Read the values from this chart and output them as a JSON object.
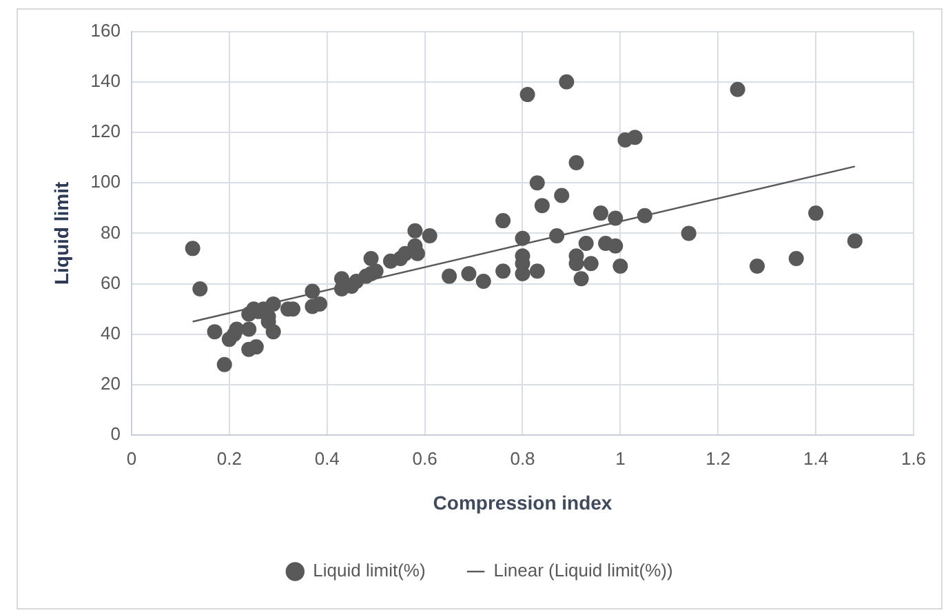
{
  "chart_data": {
    "type": "scatter",
    "xlabel": "Compression index",
    "ylabel": "Liquid limit",
    "xlim": [
      0,
      1.6
    ],
    "xticks": [
      0,
      0.2,
      0.4,
      0.6,
      0.8,
      1,
      1.2,
      1.4,
      1.6
    ],
    "ylim": [
      0,
      160
    ],
    "yticks": [
      0,
      20,
      40,
      60,
      80,
      100,
      120,
      140,
      160
    ],
    "grid": true,
    "legend": "bottom",
    "series": [
      {
        "name": "Liquid limit(%)",
        "marker": "circle",
        "color": "#595959",
        "x": [
          0.125,
          0.14,
          0.17,
          0.19,
          0.2,
          0.21,
          0.215,
          0.24,
          0.24,
          0.24,
          0.255,
          0.25,
          0.26,
          0.27,
          0.28,
          0.28,
          0.29,
          0.29,
          0.32,
          0.33,
          0.37,
          0.37,
          0.385,
          0.43,
          0.43,
          0.45,
          0.46,
          0.48,
          0.49,
          0.49,
          0.5,
          0.53,
          0.55,
          0.56,
          0.58,
          0.58,
          0.585,
          0.61,
          0.65,
          0.69,
          0.72,
          0.76,
          0.76,
          0.8,
          0.8,
          0.8,
          0.8,
          0.81,
          0.83,
          0.83,
          0.84,
          0.87,
          0.88,
          0.89,
          0.91,
          0.91,
          0.91,
          0.92,
          0.93,
          0.94,
          0.96,
          0.97,
          0.99,
          0.99,
          1.0,
          1.01,
          1.03,
          1.05,
          1.14,
          1.24,
          1.28,
          1.36,
          1.4,
          1.48
        ],
        "values": [
          74,
          58,
          41,
          28,
          38,
          40,
          42,
          48,
          42,
          34,
          35,
          50,
          49,
          50,
          47,
          45,
          52,
          41,
          50,
          50,
          57,
          51,
          52,
          62,
          58,
          59,
          61,
          63,
          70,
          64,
          65,
          69,
          70,
          72,
          81,
          75,
          72,
          79,
          63,
          64,
          61,
          65,
          85,
          78,
          71,
          68,
          64,
          135,
          65,
          100,
          91,
          79,
          95,
          140,
          108,
          71,
          68,
          62,
          76,
          68,
          88,
          76,
          86,
          75,
          67,
          117,
          118,
          87,
          80,
          137,
          67,
          70,
          88,
          77
        ]
      },
      {
        "name": "Linear (Liquid limit(%))",
        "type": "line",
        "marker": "none",
        "color": "#595959",
        "x": [
          0.125,
          1.48
        ],
        "values": [
          45,
          106.5
        ]
      }
    ]
  }
}
